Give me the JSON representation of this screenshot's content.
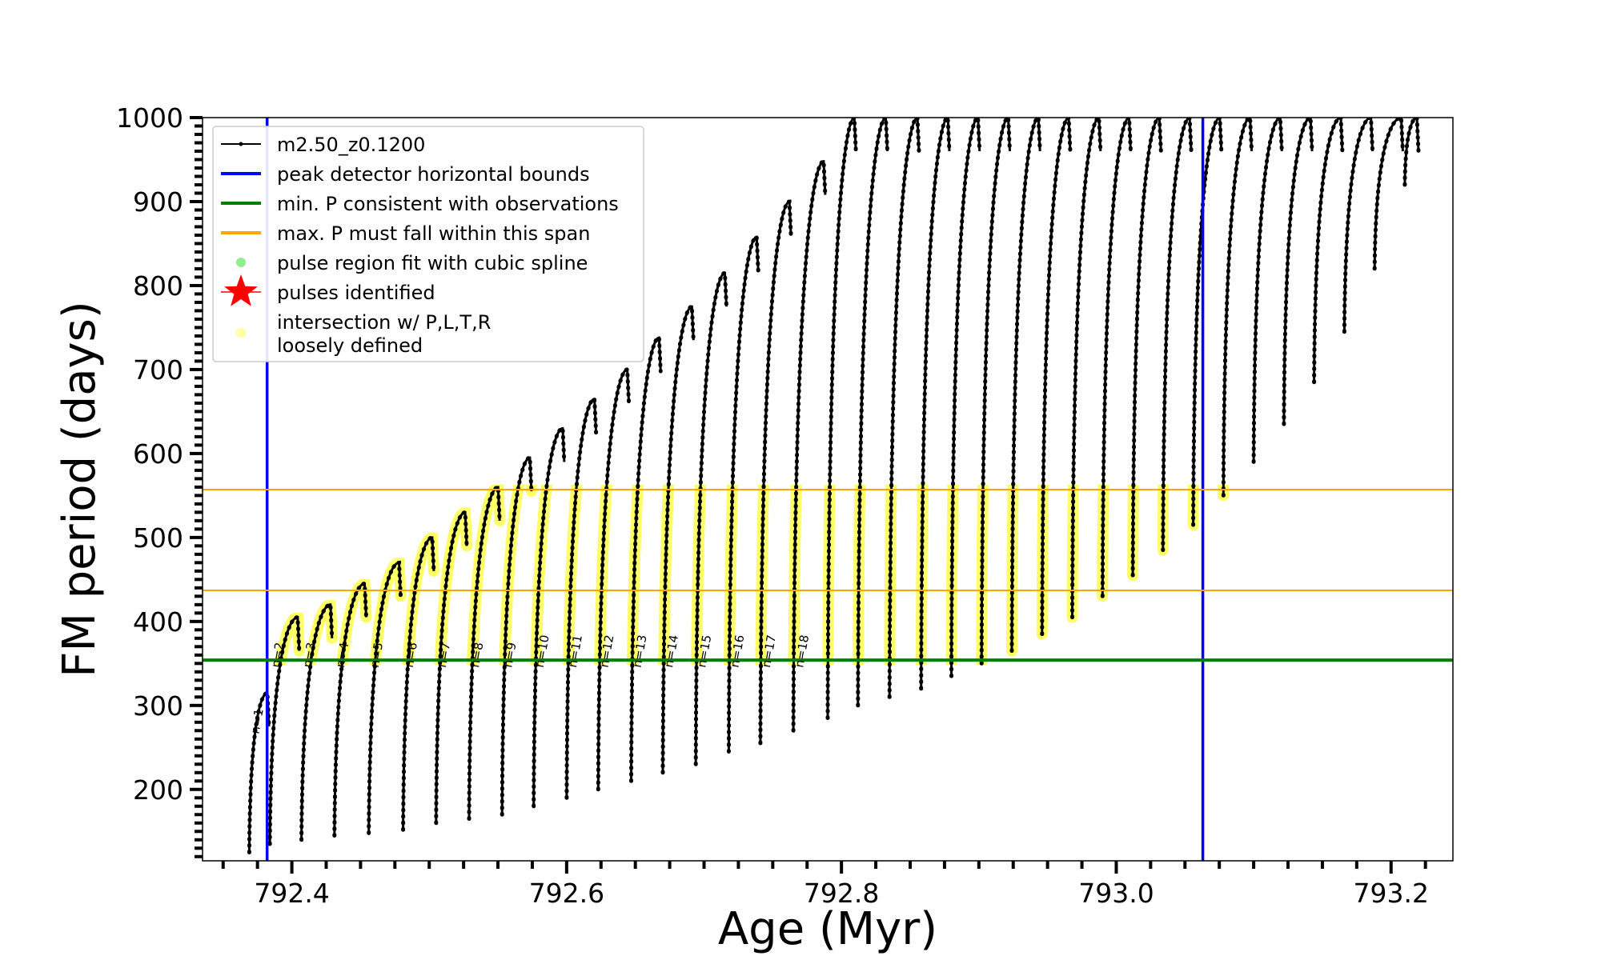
{
  "chart_data": {
    "type": "line",
    "xlabel": "Age (Myr)",
    "ylabel": "FM period (days)",
    "xlim": [
      792.335,
      793.245
    ],
    "ylim": [
      115,
      1000
    ],
    "x_ticks": [
      792.4,
      792.6,
      792.8,
      793.0,
      793.2
    ],
    "x_tick_labels": [
      "792.4",
      "792.6",
      "792.8",
      "793.0",
      "793.2"
    ],
    "y_ticks": [
      200,
      300,
      400,
      500,
      600,
      700,
      800,
      900,
      1000
    ],
    "y_tick_labels": [
      "200",
      "300",
      "400",
      "500",
      "600",
      "700",
      "800",
      "900",
      "1000"
    ],
    "legend_position": "upper-left",
    "legend": [
      {
        "label": "m2.50_z0.1200",
        "kind": "line-marker",
        "color": "#000000"
      },
      {
        "label": "peak detector horizontal bounds",
        "kind": "line",
        "color": "#0000ff"
      },
      {
        "label": "min. P consistent with observations",
        "kind": "line",
        "color": "#008000"
      },
      {
        "label": "max. P must fall within this span",
        "kind": "line",
        "color": "#ffa500"
      },
      {
        "label": "pulse region fit with cubic spline",
        "kind": "dot",
        "color": "#90ee90"
      },
      {
        "label": "pulses identified",
        "kind": "star",
        "color": "#ff0000"
      },
      {
        "label": "intersection w/ P,L,T,R",
        "label_line2": "loosely defined",
        "kind": "dot",
        "color": "#ffffa0"
      }
    ],
    "vertical_bounds": [
      792.382,
      793.063
    ],
    "min_period": 354,
    "max_period_span": [
      437,
      557
    ],
    "pulses": [
      {
        "n": "n=1",
        "x": 792.369,
        "peak": 315,
        "trough": 125
      },
      {
        "n": "n=2",
        "x": 792.384,
        "peak": 405,
        "trough": 135
      },
      {
        "n": "n=3",
        "x": 792.407,
        "peak": 420,
        "trough": 140
      },
      {
        "n": "n=4",
        "x": 792.431,
        "peak": 445,
        "trough": 145
      },
      {
        "n": "n=5",
        "x": 792.456,
        "peak": 470,
        "trough": 148
      },
      {
        "n": "n=6",
        "x": 792.481,
        "peak": 500,
        "trough": 152
      },
      {
        "n": "n=7",
        "x": 792.505,
        "peak": 530,
        "trough": 160
      },
      {
        "n": "n=8",
        "x": 792.529,
        "peak": 560,
        "trough": 165
      },
      {
        "n": "n=9",
        "x": 792.553,
        "peak": 595,
        "trough": 170
      },
      {
        "n": "n=10",
        "x": 792.576,
        "peak": 630,
        "trough": 180
      },
      {
        "n": "n=11",
        "x": 792.6,
        "peak": 665,
        "trough": 190
      },
      {
        "n": "n=12",
        "x": 792.623,
        "peak": 700,
        "trough": 200
      },
      {
        "n": "n=13",
        "x": 792.647,
        "peak": 738,
        "trough": 210
      },
      {
        "n": "n=14",
        "x": 792.67,
        "peak": 775,
        "trough": 220
      },
      {
        "n": "n=15",
        "x": 792.694,
        "peak": 815,
        "trough": 230
      },
      {
        "n": "n=16",
        "x": 792.718,
        "peak": 858,
        "trough": 245
      },
      {
        "n": "n=17",
        "x": 792.741,
        "peak": 900,
        "trough": 255
      },
      {
        "n": "n=18",
        "x": 792.765,
        "peak": 948,
        "trough": 270
      },
      {
        "n": "",
        "x": 792.79,
        "peak": 1000,
        "trough": 285
      },
      {
        "n": "",
        "x": 792.812,
        "peak": 1000,
        "trough": 300
      },
      {
        "n": "",
        "x": 792.835,
        "peak": 1000,
        "trough": 310
      },
      {
        "n": "",
        "x": 792.858,
        "peak": 1000,
        "trough": 320
      },
      {
        "n": "",
        "x": 792.88,
        "peak": 1000,
        "trough": 335
      },
      {
        "n": "",
        "x": 792.902,
        "peak": 1000,
        "trough": 350
      },
      {
        "n": "",
        "x": 792.924,
        "peak": 1000,
        "trough": 365
      },
      {
        "n": "",
        "x": 792.946,
        "peak": 1000,
        "trough": 385
      },
      {
        "n": "",
        "x": 792.968,
        "peak": 1000,
        "trough": 405
      },
      {
        "n": "",
        "x": 792.99,
        "peak": 1000,
        "trough": 430
      },
      {
        "n": "",
        "x": 793.012,
        "peak": 1000,
        "trough": 455
      },
      {
        "n": "",
        "x": 793.034,
        "peak": 1000,
        "trough": 485
      },
      {
        "n": "",
        "x": 793.056,
        "peak": 1000,
        "trough": 515
      },
      {
        "n": "",
        "x": 793.078,
        "peak": 1000,
        "trough": 550
      },
      {
        "n": "",
        "x": 793.1,
        "peak": 1000,
        "trough": 590
      },
      {
        "n": "",
        "x": 793.122,
        "peak": 1000,
        "trough": 635
      },
      {
        "n": "",
        "x": 793.144,
        "peak": 1000,
        "trough": 685
      },
      {
        "n": "",
        "x": 793.166,
        "peak": 1000,
        "trough": 745
      },
      {
        "n": "",
        "x": 793.188,
        "peak": 1000,
        "trough": 820
      },
      {
        "n": "",
        "x": 793.21,
        "peak": 1000,
        "trough": 920
      }
    ]
  }
}
